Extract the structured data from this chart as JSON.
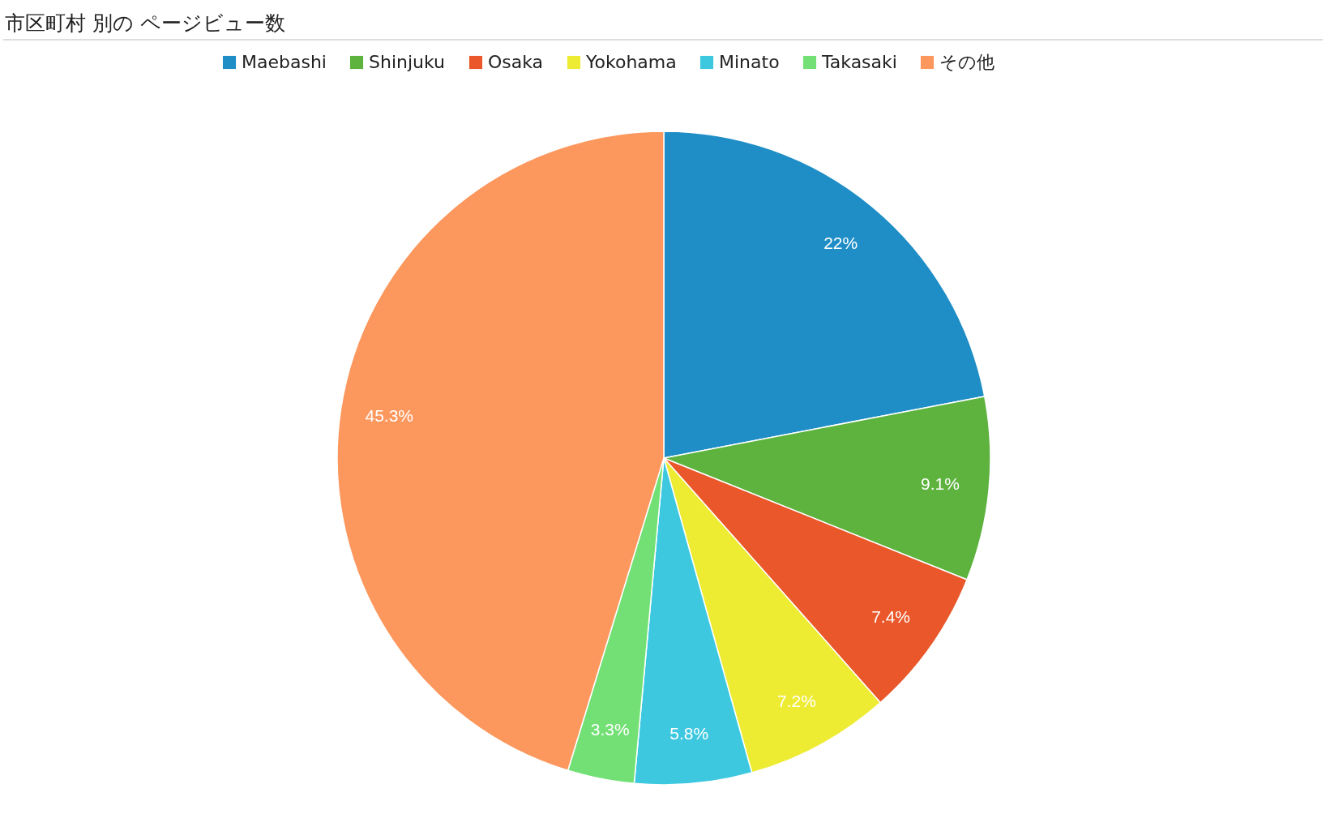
{
  "chart_data": {
    "type": "pie",
    "title": "市区町村 別の ページビュー数",
    "categories": [
      "Maebashi",
      "Shinjuku",
      "Osaka",
      "Yokohama",
      "Minato",
      "Takasaki",
      "その他"
    ],
    "values": [
      22,
      9.1,
      7.4,
      7.2,
      5.8,
      3.3,
      45.3
    ],
    "value_labels": [
      "22%",
      "9.1%",
      "7.4%",
      "7.2%",
      "5.8%",
      "3.3%",
      "45.3%"
    ],
    "colors": [
      "#1f8ec6",
      "#5db33e",
      "#e9572a",
      "#eeeb33",
      "#3dc8e0",
      "#73e076",
      "#fc975d"
    ],
    "legend": "top"
  }
}
